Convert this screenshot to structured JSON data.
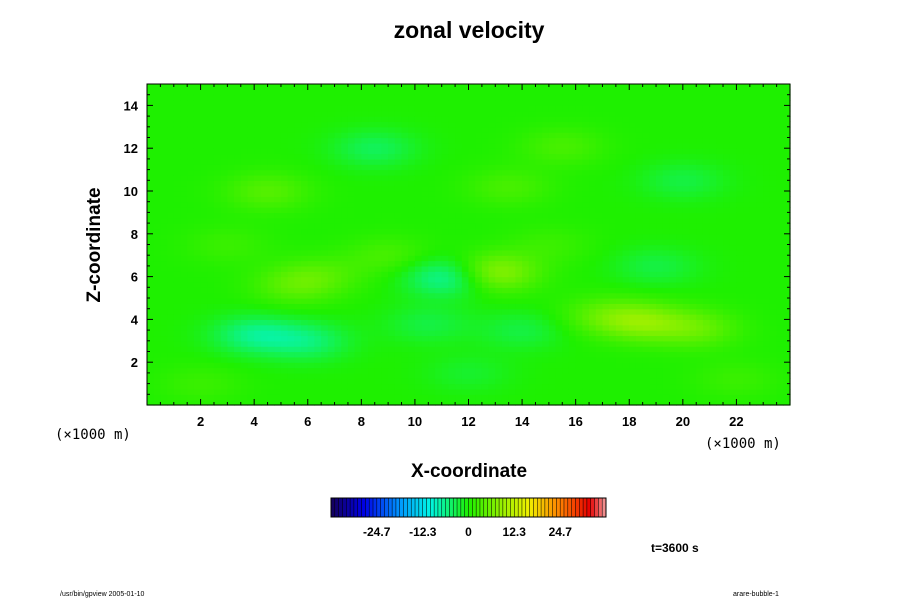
{
  "chart_data": {
    "type": "heatmap",
    "title": "zonal velocity",
    "xlabel": "X-coordinate",
    "ylabel": "Z-coordinate",
    "x_unit": "(×1000 m)",
    "y_unit": "(×1000 m)",
    "xlim": [
      0,
      24
    ],
    "ylim": [
      0,
      15
    ],
    "xticks": [
      2,
      4,
      6,
      8,
      10,
      12,
      14,
      16,
      18,
      20,
      22
    ],
    "yticks": [
      2,
      4,
      6,
      8,
      10,
      12,
      14
    ],
    "colorbar": {
      "min": -37,
      "max": 37,
      "ticks": [
        -24.7,
        -12.3,
        0,
        12.3,
        24.7
      ],
      "tick_labels": [
        "-24.7",
        "-12.3",
        "0",
        "12.3",
        "24.7"
      ]
    },
    "background_value": 0,
    "features": [
      {
        "x": 12.9,
        "z": 6.2,
        "value": 9
      },
      {
        "x": 11.3,
        "z": 6.0,
        "value": -8
      },
      {
        "x": 4.0,
        "z": 3.3,
        "value": -6
      },
      {
        "x": 6.0,
        "z": 3.0,
        "value": -5
      },
      {
        "x": 18.5,
        "z": 3.9,
        "value": 7
      },
      {
        "x": 20.5,
        "z": 3.6,
        "value": 5
      },
      {
        "x": 17.0,
        "z": 4.2,
        "value": 4
      },
      {
        "x": 5.5,
        "z": 5.6,
        "value": 4
      },
      {
        "x": 6.5,
        "z": 6.1,
        "value": 3
      },
      {
        "x": 19.0,
        "z": 6.5,
        "value": -3
      },
      {
        "x": 8.5,
        "z": 12.0,
        "value": -4
      },
      {
        "x": 15.5,
        "z": 12.1,
        "value": 3
      },
      {
        "x": 4.5,
        "z": 10.0,
        "value": 4
      },
      {
        "x": 13.5,
        "z": 10.2,
        "value": 3
      },
      {
        "x": 20.0,
        "z": 10.5,
        "value": -3
      },
      {
        "x": 3.0,
        "z": 7.5,
        "value": 2
      },
      {
        "x": 9.0,
        "z": 7.0,
        "value": 3
      },
      {
        "x": 15.0,
        "z": 7.5,
        "value": 2
      },
      {
        "x": 10.5,
        "z": 3.8,
        "value": -3
      },
      {
        "x": 14.0,
        "z": 3.5,
        "value": -3
      },
      {
        "x": 2.0,
        "z": 1.0,
        "value": 2
      },
      {
        "x": 22.0,
        "z": 1.2,
        "value": 2
      },
      {
        "x": 12.0,
        "z": 1.5,
        "value": -2
      }
    ]
  },
  "annotations": {
    "time": "t=3600 s",
    "footer_left": "/usr/bin/gpview 2005-01-10",
    "footer_right": "arare-bubble-1"
  }
}
